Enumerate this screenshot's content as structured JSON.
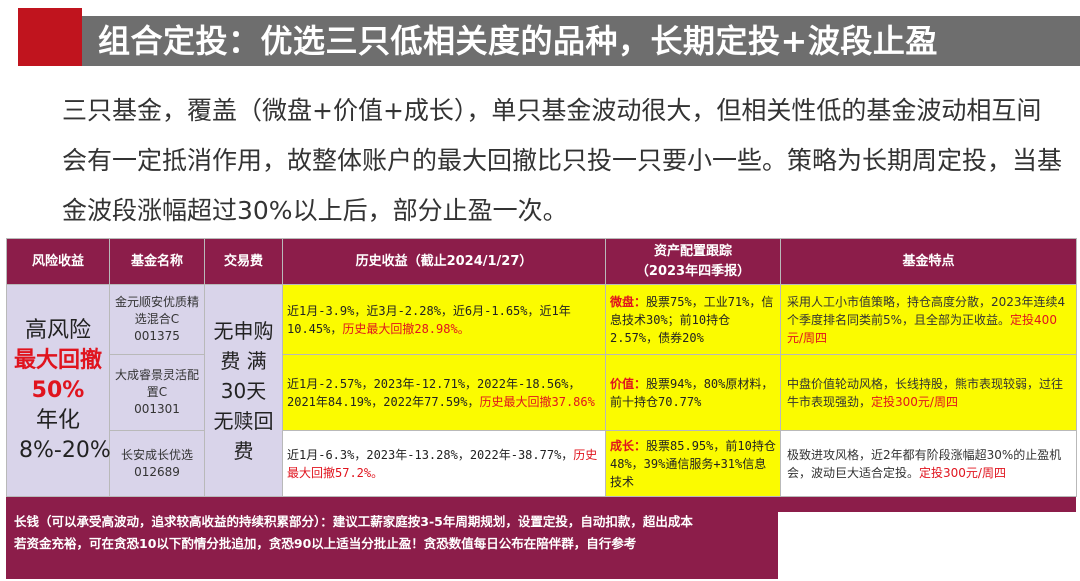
{
  "title": "组合定投：优选三只低相关度的品种，长期定投+波段止盈",
  "intro": "三只基金，覆盖（微盘+价值+成长），单只基金波动很大，但相关性低的基金波动相互间会有一定抵消作用，故整体账户的最大回撤比只投一只要小一些。策略为长期周定投，当基金波段涨幅超过30%以上后，部分止盈一次。",
  "table": {
    "headers": {
      "risk": "风险收益",
      "name": "基金名称",
      "fee": "交易费",
      "history": "历史收益（截止2024/1/27）",
      "alloc_line1": "资产配置跟踪",
      "alloc_line2": "（2023年四季报）",
      "feature": "基金特点"
    },
    "risk": {
      "line1": "高风险",
      "line2": "最大回撤50%",
      "line3": "年化",
      "line4": "8%-20%"
    },
    "fee": "无申购费 满30天无赎回费",
    "rows": [
      {
        "fund_name": "金元顺安优质精选混合C",
        "fund_code": "001375",
        "history": "近1月-3.9%，近3月-2.28%，近6月-1.65%，近1年10.45%，",
        "history_red": "历史最大回撤28.98%。",
        "alloc_key": "微盘：",
        "alloc": "股票75%，工业71%，信息技术30%；前10持仓2.57%，债券20%",
        "feature": "采用人工小市值策略，持仓高度分散，2023年连续4个季度排名同类前5%，且全部为正收益。",
        "feature_red": "定投400元/周四"
      },
      {
        "fund_name": "大成睿景灵活配置C",
        "fund_code": "001301",
        "history": "近1月-2.57%，2023年-12.71%，2022年-18.56%，2021年84.19%，2022年77.59%，",
        "history_red": "历史最大回撤37.86%",
        "alloc_key": "价值：",
        "alloc": "股票94%，80%原材料，前十持仓70.77%",
        "feature": "中盘价值轮动风格，长线持股，熊市表现较弱，过往牛市表现强劲，",
        "feature_red": "定投300元/周四"
      },
      {
        "fund_name": "长安成长优选",
        "fund_code": "012689",
        "history": "近1月-6.3%，2023年-13.28%，2022年-38.77%，",
        "history_red": "历史最大回撤57.2%。",
        "alloc_key": "成长：",
        "alloc": "股票85.95%，前10持仓48%，39%通信服务+31%信息技术",
        "feature": "极致进攻风格，近2年都有阶段涨幅超30%的止盈机会，波动巨大适合定投。",
        "feature_red": "定投300元/周四"
      }
    ]
  },
  "footer": {
    "line1": "长钱（可以承受高波动，追求较高收益的持续积累部分）：建议工薪家庭按3-5年周期规划，设置定投，自动扣款，超出成本",
    "line2": "若资金充裕，可在贪恐10以下酌情分批追加，贪恐90以上适当分批止盈！贪恐数值每日公布在陪伴群，自行参考"
  },
  "colors": {
    "accent_red": "#c0141e",
    "header_purple": "#8c1d4a",
    "lavender": "#d9d4ea",
    "highlight_yellow": "#fbfb00",
    "title_gray": "#6e6e6e"
  }
}
